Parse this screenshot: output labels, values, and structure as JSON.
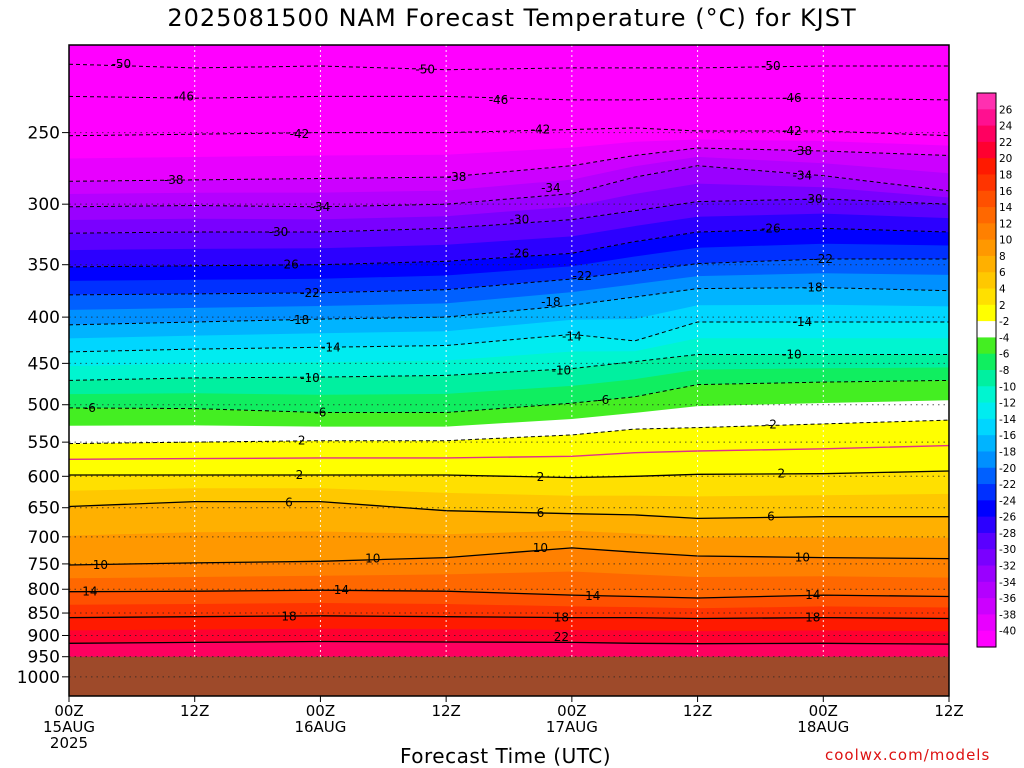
{
  "title": "2025081500 NAM Forecast Temperature (°C) for KJST",
  "credit": "coolwx.com/models",
  "chart_data": {
    "type": "heatmap",
    "title": "2025081500 NAM Forecast Temperature (°C) for KJST",
    "xlabel": "Forecast Time (UTC)",
    "ylabel": "",
    "y_log": true,
    "y_reversed": true,
    "ylim": [
      200,
      1050
    ],
    "xlim": [
      0,
      84
    ],
    "ground_level_hPa": 950,
    "ground_color": "#9e4a2a",
    "y_ticks": [
      250,
      300,
      350,
      400,
      450,
      500,
      550,
      600,
      650,
      700,
      750,
      800,
      850,
      900,
      950,
      1000
    ],
    "x_ticks": [
      {
        "hour": 0,
        "lines": [
          "00Z",
          "15AUG",
          "2025"
        ]
      },
      {
        "hour": 12,
        "lines": [
          "12Z"
        ]
      },
      {
        "hour": 24,
        "lines": [
          "00Z",
          "16AUG"
        ]
      },
      {
        "hour": 36,
        "lines": [
          "12Z"
        ]
      },
      {
        "hour": 48,
        "lines": [
          "00Z",
          "17AUG"
        ]
      },
      {
        "hour": 60,
        "lines": [
          "12Z"
        ]
      },
      {
        "hour": 72,
        "lines": [
          "00Z",
          "18AUG"
        ]
      },
      {
        "hour": 84,
        "lines": [
          "12Z"
        ]
      }
    ],
    "grid": true,
    "x": [
      0,
      12,
      24,
      36,
      48,
      54,
      60,
      72,
      84
    ],
    "isotherms": [
      {
        "value": -50,
        "p": [
          210,
          212,
          211,
          213,
          212,
          212,
          212,
          211,
          211
        ]
      },
      {
        "value": -46,
        "p": [
          228,
          229,
          228,
          228,
          230,
          230,
          229,
          229,
          230
        ]
      },
      {
        "value": -42,
        "p": [
          252,
          251,
          250,
          250,
          248,
          247,
          249,
          249,
          252
        ]
      },
      {
        "value": -38,
        "p": [
          283,
          282,
          281,
          280,
          272,
          265,
          260,
          262,
          265
        ]
      },
      {
        "value": -34,
        "p": [
          302,
          301,
          302,
          300,
          292,
          280,
          272,
          279,
          290
        ]
      },
      {
        "value": -30,
        "p": [
          323,
          322,
          322,
          319,
          312,
          305,
          298,
          296,
          300
        ]
      },
      {
        "value": -26,
        "p": [
          352,
          351,
          350,
          347,
          340,
          330,
          322,
          319,
          322
        ]
      },
      {
        "value": -22,
        "p": [
          378,
          377,
          376,
          373,
          363,
          356,
          349,
          345,
          345
        ]
      },
      {
        "value": -18,
        "p": [
          408,
          405,
          402,
          400,
          388,
          380,
          372,
          371,
          374
        ]
      },
      {
        "value": -14,
        "p": [
          437,
          434,
          432,
          430,
          418,
          425,
          405,
          405,
          405
        ]
      },
      {
        "value": -10,
        "p": [
          470,
          467,
          466,
          464,
          456,
          448,
          440,
          440,
          440
        ]
      },
      {
        "value": -6,
        "p": [
          504,
          505,
          510,
          510,
          498,
          490,
          475,
          472,
          470
        ]
      },
      {
        "value": -2,
        "p": [
          552,
          550,
          548,
          548,
          540,
          532,
          530,
          525,
          520
        ]
      },
      {
        "value": 2,
        "p": [
          598,
          598,
          598,
          598,
          602,
          600,
          597,
          596,
          592
        ]
      },
      {
        "value": 6,
        "p": [
          648,
          640,
          640,
          655,
          660,
          662,
          668,
          665,
          665
        ]
      },
      {
        "value": 10,
        "p": [
          752,
          748,
          745,
          738,
          720,
          728,
          735,
          738,
          740
        ]
      },
      {
        "value": 14,
        "p": [
          805,
          804,
          802,
          804,
          812,
          815,
          818,
          812,
          815
        ]
      },
      {
        "value": 18,
        "p": [
          860,
          858,
          856,
          858,
          860,
          860,
          862,
          860,
          862
        ]
      },
      {
        "value": 22,
        "p": [
          918,
          916,
          914,
          915,
          916,
          918,
          919,
          918,
          920
        ]
      }
    ],
    "contour_labels": [
      {
        "text": "-50",
        "hour": 5,
        "p": 210
      },
      {
        "text": "-50",
        "hour": 34,
        "p": 213
      },
      {
        "text": "-50",
        "hour": 67,
        "p": 211
      },
      {
        "text": "-46",
        "hour": 11,
        "p": 228
      },
      {
        "text": "-46",
        "hour": 41,
        "p": 230
      },
      {
        "text": "-46",
        "hour": 69,
        "p": 229
      },
      {
        "text": "-42",
        "hour": 22,
        "p": 251
      },
      {
        "text": "-42",
        "hour": 45,
        "p": 248
      },
      {
        "text": "-42",
        "hour": 69,
        "p": 249
      },
      {
        "text": "-38",
        "hour": 10,
        "p": 282
      },
      {
        "text": "-38",
        "hour": 37,
        "p": 280
      },
      {
        "text": "-38",
        "hour": 70,
        "p": 262
      },
      {
        "text": "-34",
        "hour": 24,
        "p": 302
      },
      {
        "text": "-34",
        "hour": 46,
        "p": 288
      },
      {
        "text": "-34",
        "hour": 70,
        "p": 279
      },
      {
        "text": "-30",
        "hour": 20,
        "p": 322
      },
      {
        "text": "-30",
        "hour": 43,
        "p": 312
      },
      {
        "text": "-30",
        "hour": 71,
        "p": 296
      },
      {
        "text": "-26",
        "hour": 21,
        "p": 350
      },
      {
        "text": "-26",
        "hour": 43,
        "p": 340
      },
      {
        "text": "-26",
        "hour": 67,
        "p": 319
      },
      {
        "text": "-22",
        "hour": 23,
        "p": 376
      },
      {
        "text": "-22",
        "hour": 49,
        "p": 360
      },
      {
        "text": "-22",
        "hour": 72,
        "p": 345
      },
      {
        "text": "-18",
        "hour": 22,
        "p": 403
      },
      {
        "text": "-18",
        "hour": 46,
        "p": 385
      },
      {
        "text": "-18",
        "hour": 71,
        "p": 371
      },
      {
        "text": "-14",
        "hour": 25,
        "p": 432
      },
      {
        "text": "-14",
        "hour": 48,
        "p": 420
      },
      {
        "text": "-14",
        "hour": 70,
        "p": 405
      },
      {
        "text": "-10",
        "hour": 23,
        "p": 467
      },
      {
        "text": "-10",
        "hour": 47,
        "p": 458
      },
      {
        "text": "-10",
        "hour": 69,
        "p": 440
      },
      {
        "text": "-6",
        "hour": 2,
        "p": 504
      },
      {
        "text": "-6",
        "hour": 24,
        "p": 510
      },
      {
        "text": "-6",
        "hour": 51,
        "p": 494
      },
      {
        "text": "-2",
        "hour": 22,
        "p": 548
      },
      {
        "text": "-2",
        "hour": 67,
        "p": 526
      },
      {
        "text": "2",
        "hour": 22,
        "p": 598
      },
      {
        "text": "2",
        "hour": 45,
        "p": 601
      },
      {
        "text": "2",
        "hour": 68,
        "p": 596
      },
      {
        "text": "6",
        "hour": 21,
        "p": 641
      },
      {
        "text": "6",
        "hour": 45,
        "p": 659
      },
      {
        "text": "6",
        "hour": 67,
        "p": 665
      },
      {
        "text": "10",
        "hour": 3,
        "p": 752
      },
      {
        "text": "10",
        "hour": 29,
        "p": 740
      },
      {
        "text": "10",
        "hour": 45,
        "p": 720
      },
      {
        "text": "10",
        "hour": 70,
        "p": 738
      },
      {
        "text": "14",
        "hour": 2,
        "p": 805
      },
      {
        "text": "14",
        "hour": 26,
        "p": 802
      },
      {
        "text": "14",
        "hour": 50,
        "p": 814
      },
      {
        "text": "14",
        "hour": 71,
        "p": 812
      },
      {
        "text": "18",
        "hour": 21,
        "p": 857
      },
      {
        "text": "18",
        "hour": 47,
        "p": 860
      },
      {
        "text": "18",
        "hour": 71,
        "p": 860
      },
      {
        "text": "22",
        "hour": 47,
        "p": 904
      }
    ],
    "colorbar": {
      "levels": [
        -40,
        -38,
        -36,
        -34,
        -32,
        -30,
        -28,
        -26,
        -24,
        -22,
        -20,
        -18,
        -16,
        -14,
        -12,
        -10,
        -8,
        -6,
        -4,
        -2,
        2,
        4,
        6,
        8,
        10,
        12,
        14,
        16,
        18,
        20,
        22,
        24,
        26
      ],
      "colors": [
        "#ff00ff",
        "#e800ff",
        "#cc00ff",
        "#b400ff",
        "#9a00ff",
        "#7a00ff",
        "#5a00ff",
        "#2c00ff",
        "#0000ff",
        "#0030ff",
        "#0060ff",
        "#0090ff",
        "#00b4ff",
        "#00d6ff",
        "#00ecf0",
        "#00f5d0",
        "#00f0a0",
        "#10ee60",
        "#44ee22",
        "#ffffff",
        "#ffff00",
        "#ffe000",
        "#ffc800",
        "#ffb000",
        "#ff9800",
        "#ff8000",
        "#ff6800",
        "#ff5000",
        "#ff3400",
        "#ff1a00",
        "#ff0030",
        "#ff0060",
        "#ff1090",
        "#ff30b0"
      ],
      "zero_line_color": "#e0308a"
    }
  }
}
